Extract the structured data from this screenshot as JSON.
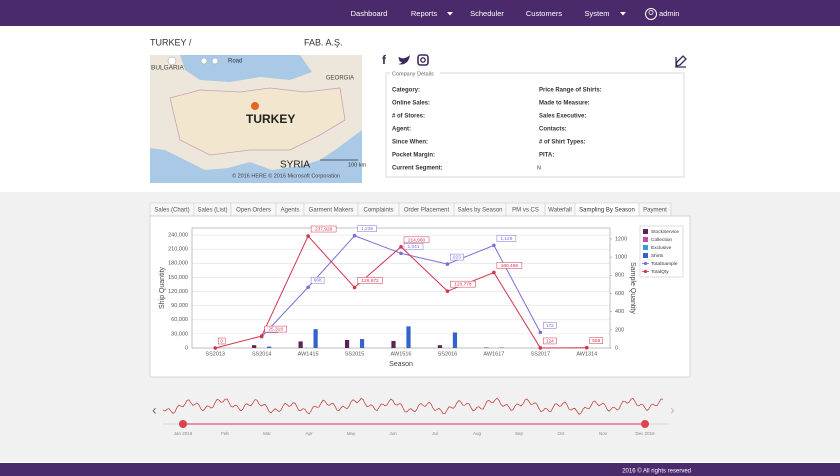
{
  "nav": {
    "items": [
      "Dashboard",
      "Reports",
      "Scheduler",
      "Customers",
      "System"
    ],
    "user": "admin"
  },
  "header": {
    "country": "TURKEY /",
    "company": "FAB. A.Ş."
  },
  "map": {
    "mode": "Road",
    "labels": [
      "BULGARIA",
      "GEORGIA",
      "TURKEY",
      "SYRIA"
    ],
    "scale": "100 km",
    "copyright": "© 2016 HERE © 2016 Microsoft Corporation"
  },
  "details": {
    "title": "Company Details",
    "left": [
      "Category:",
      "Online Sales:",
      "# of Stores:",
      "Agent:",
      "Since When:",
      "Pocket Margin:",
      "Current Segment:"
    ],
    "right": [
      "Price Range of Shirts:",
      "Made to Measure:",
      "Sales Executive:",
      "Contacts:",
      "# of Shirt Types:",
      "PITA:"
    ],
    "segment_value": "N"
  },
  "tabs": {
    "items": [
      "Sales (Chart)",
      "Sales (List)",
      "Open Orders",
      "Agents",
      "Garment Makers",
      "Complaints",
      "Order Placement",
      "Sales by Season",
      "PM vs CS",
      "Waterfall",
      "Sampling By Season",
      "Payment"
    ],
    "active": 10
  },
  "chart_data": {
    "type": "combo",
    "categories": [
      "SS2013",
      "SS2014",
      "AW1415",
      "SS2015",
      "AW1516",
      "SS2016",
      "AW1617",
      "SS2017",
      "AW1314"
    ],
    "xlabel": "Season",
    "ylabel": "Ship Quantity",
    "y2label": "Sample Quantity",
    "ylim": [
      0,
      255000
    ],
    "yticks": [
      0,
      {
        "value": 30000,
        "label": "30,000"
      },
      {
        "value": 60000,
        "label": "60,000"
      },
      {
        "value": 90000,
        "label": "90,000"
      },
      {
        "value": 120000,
        "label": "120,000"
      },
      {
        "value": 150000,
        "label": "150,000"
      },
      {
        "value": 180000,
        "label": "180,000"
      },
      {
        "value": 210000,
        "label": "210,000"
      },
      {
        "value": 240000,
        "label": "240,000"
      }
    ],
    "y2lim": [
      0,
      1320
    ],
    "y2ticks": [
      0,
      200,
      400,
      600,
      800,
      1000,
      1200
    ],
    "grid": true,
    "legend": "right",
    "series": [
      {
        "name": "StockService",
        "type": "bar",
        "color": "#5b2456",
        "values": [
          0,
          6000,
          14000,
          17000,
          15000,
          6000,
          1000,
          0,
          0
        ]
      },
      {
        "name": "Collection",
        "type": "bar",
        "color": "#c2509c",
        "values": [
          0,
          0,
          0,
          0,
          0,
          0,
          0,
          0,
          0
        ]
      },
      {
        "name": "Exclusive",
        "type": "bar",
        "color": "#3a9fc8",
        "values": [
          0,
          0,
          0,
          0,
          0,
          0,
          0,
          0,
          0
        ]
      },
      {
        "name": "Shirts",
        "type": "bar",
        "color": "#3463cc",
        "values": [
          0,
          3000,
          40000,
          19000,
          46000,
          33000,
          1000,
          0,
          0
        ]
      },
      {
        "name": "TotalSample",
        "type": "line",
        "axis": "y2",
        "color": "#7b6fd9",
        "values": [
          null,
          124,
          668,
          1235,
          1041,
          923,
          1129,
          172,
          null
        ],
        "value_labels": [
          null,
          "124",
          "668",
          "1,235",
          "1,041",
          "923",
          "1,129",
          "172",
          null
        ]
      },
      {
        "name": "TotalQty",
        "type": "line",
        "color": "#d2344e",
        "values": [
          0,
          25318,
          237928,
          128672,
          214960,
          120778,
          160466,
          124,
          558
        ],
        "value_labels": [
          "0",
          "25,318",
          "237,928",
          "128,672",
          "214,960",
          "120,778",
          "160,466",
          "124",
          "558"
        ]
      }
    ]
  },
  "navigator": {
    "months": [
      "Jan 2016",
      "Feb",
      "Mar",
      "Apr",
      "May",
      "Jun",
      "Jul",
      "Aug",
      "Sep",
      "Oct",
      "Nov",
      "Dec 2016"
    ]
  },
  "footer": {
    "text": "2016 © All rights reserved"
  }
}
